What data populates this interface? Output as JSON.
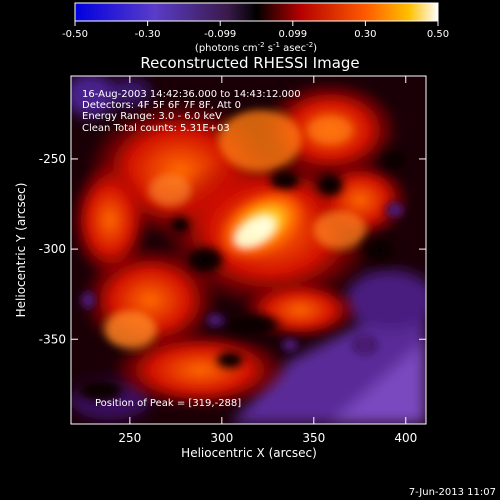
{
  "colorbar": {
    "ticks": [
      "-0.50",
      "-0.30",
      "-0.099",
      "0.099",
      "0.30",
      "0.50"
    ],
    "units_prefix": "(photons cm",
    "units_exp1": "-2",
    "units_mid": " s",
    "units_exp2": "-1",
    "units_mid2": " asec",
    "units_exp3": "-2",
    "units_suffix": ")"
  },
  "plot": {
    "title": "Reconstructed RHESSI Image",
    "info": [
      "16-Aug-2003 14:42:36.000 to 14:43:12.000",
      "Detectors: 4F 5F 6F 7F 8F, Att 0",
      "Energy Range: 3.0 - 6.0 keV",
      "Clean    Total counts: 5.31E+03"
    ],
    "peak": "Position of Peak = [319,-288]",
    "xlabel": "Heliocentric X (arcsec)",
    "ylabel": "Heliocentric Y (arcsec)",
    "xticks": [
      "250",
      "300",
      "350",
      "400"
    ],
    "yticks": [
      "-250",
      "-300",
      "-350"
    ]
  },
  "footer": {
    "timestamp": "7-Jun-2013 11:07"
  },
  "colors": {
    "low": "#1a00c0",
    "mid_low": "#6a2aa8",
    "zero": "#000000",
    "mid": "#d00010",
    "high": "#ff7a00",
    "peak": "#ffffb0"
  }
}
